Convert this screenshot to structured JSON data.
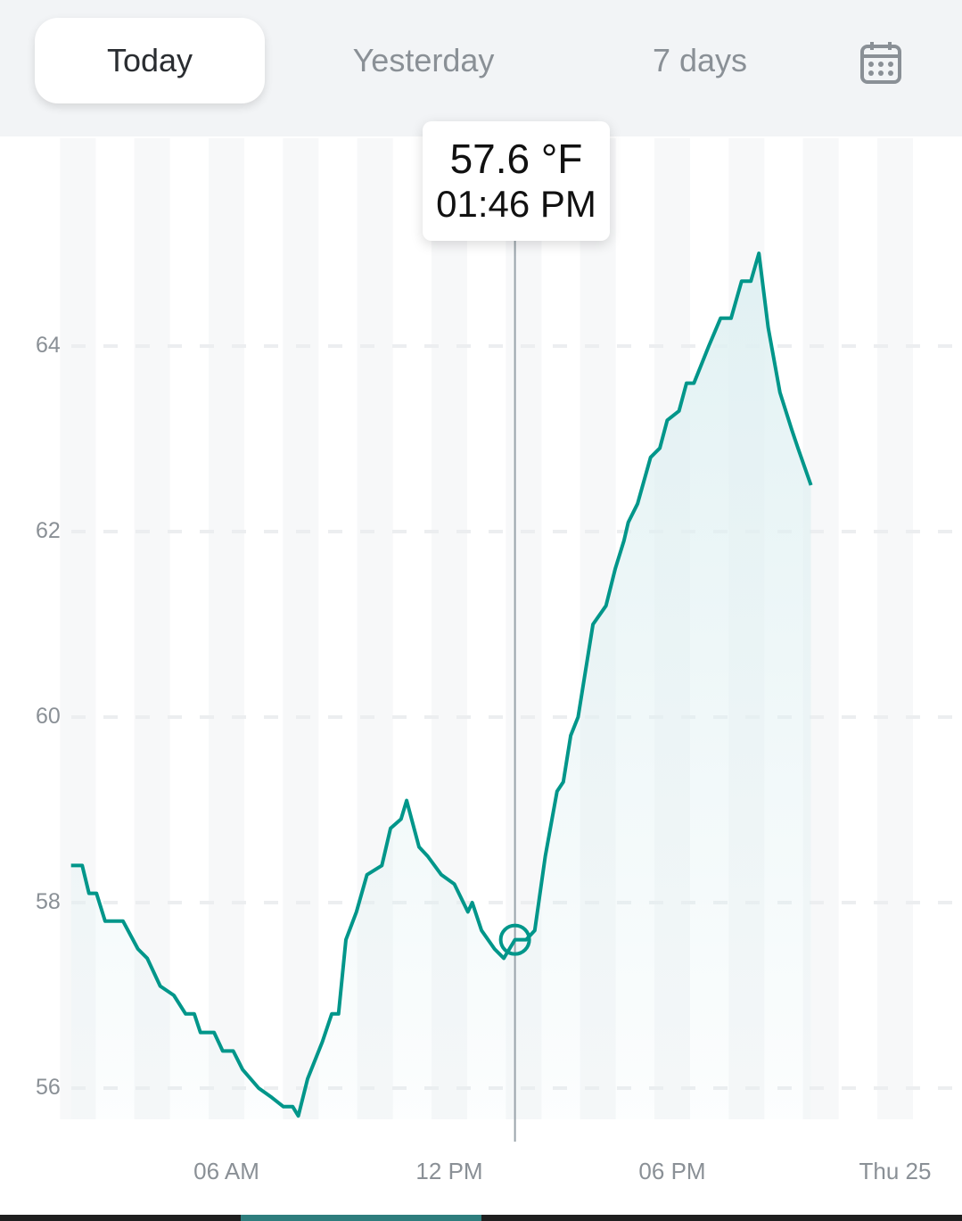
{
  "tabs": [
    {
      "label": "Today",
      "active": true
    },
    {
      "label": "Yesterday",
      "active": false
    },
    {
      "label": "7 days",
      "active": false
    }
  ],
  "calendar_icon": "calendar-icon",
  "tooltip": {
    "value": "57.6 °F",
    "time": "01:46 PM"
  },
  "colors": {
    "line": "#00968a",
    "fill": "#e6f3f5",
    "cursor": "#9aa4ab",
    "active_tab_bg": "#ffffff",
    "topbar_bg": "#f2f4f6"
  },
  "chart_data": {
    "type": "area",
    "y_ticks": [
      "56",
      "58",
      "60",
      "62",
      "64"
    ],
    "x_ticks": [
      "06 AM",
      "12 PM",
      "06 PM",
      "Thu 25"
    ],
    "ylim": [
      55.3,
      65.7
    ],
    "xlim": [
      "00:00",
      "24:00"
    ],
    "unit": "°F",
    "grid": "horizontal dashed",
    "selected": {
      "x": "13:46",
      "y": 57.6
    },
    "points": [
      [
        "01:49",
        58.4
      ],
      [
        "02:07",
        58.4
      ],
      [
        "02:18",
        58.1
      ],
      [
        "02:30",
        58.1
      ],
      [
        "02:44",
        57.8
      ],
      [
        "03:13",
        57.8
      ],
      [
        "03:37",
        57.5
      ],
      [
        "03:52",
        57.4
      ],
      [
        "04:13",
        57.1
      ],
      [
        "04:35",
        57.0
      ],
      [
        "04:54",
        56.8
      ],
      [
        "05:08",
        56.8
      ],
      [
        "05:18",
        56.6
      ],
      [
        "05:40",
        56.6
      ],
      [
        "05:54",
        56.4
      ],
      [
        "06:11",
        56.4
      ],
      [
        "06:26",
        56.2
      ],
      [
        "06:52",
        56.0
      ],
      [
        "07:13",
        55.9
      ],
      [
        "07:32",
        55.8
      ],
      [
        "07:47",
        55.8
      ],
      [
        "07:56",
        55.7
      ],
      [
        "08:11",
        56.1
      ],
      [
        "08:35",
        56.5
      ],
      [
        "08:50",
        56.8
      ],
      [
        "09:01",
        56.8
      ],
      [
        "09:13",
        57.6
      ],
      [
        "09:30",
        57.9
      ],
      [
        "09:47",
        58.3
      ],
      [
        "10:11",
        58.4
      ],
      [
        "10:25",
        58.8
      ],
      [
        "10:42",
        58.9
      ],
      [
        "10:51",
        59.1
      ],
      [
        "11:11",
        58.6
      ],
      [
        "11:25",
        58.5
      ],
      [
        "11:47",
        58.3
      ],
      [
        "12:08",
        58.2
      ],
      [
        "12:30",
        57.9
      ],
      [
        "12:37",
        58.0
      ],
      [
        "12:52",
        57.7
      ],
      [
        "13:13",
        57.5
      ],
      [
        "13:28",
        57.4
      ],
      [
        "13:46",
        57.6
      ],
      [
        "14:04",
        57.6
      ],
      [
        "14:18",
        57.7
      ],
      [
        "14:35",
        58.5
      ],
      [
        "14:54",
        59.2
      ],
      [
        "15:04",
        59.3
      ],
      [
        "15:16",
        59.8
      ],
      [
        "15:28",
        60.0
      ],
      [
        "15:52",
        61.0
      ],
      [
        "16:13",
        61.2
      ],
      [
        "16:28",
        61.6
      ],
      [
        "16:42",
        61.9
      ],
      [
        "16:49",
        62.1
      ],
      [
        "17:04",
        62.3
      ],
      [
        "17:25",
        62.8
      ],
      [
        "17:40",
        62.9
      ],
      [
        "17:52",
        63.2
      ],
      [
        "18:11",
        63.3
      ],
      [
        "18:23",
        63.6
      ],
      [
        "18:35",
        63.6
      ],
      [
        "18:59",
        64.0
      ],
      [
        "19:18",
        64.3
      ],
      [
        "19:35",
        64.3
      ],
      [
        "19:52",
        64.7
      ],
      [
        "20:07",
        64.7
      ],
      [
        "20:20",
        65.0
      ],
      [
        "20:35",
        64.2
      ],
      [
        "20:54",
        63.5
      ],
      [
        "21:13",
        63.1
      ],
      [
        "21:23",
        62.9
      ],
      [
        "21:44",
        62.5
      ]
    ]
  }
}
